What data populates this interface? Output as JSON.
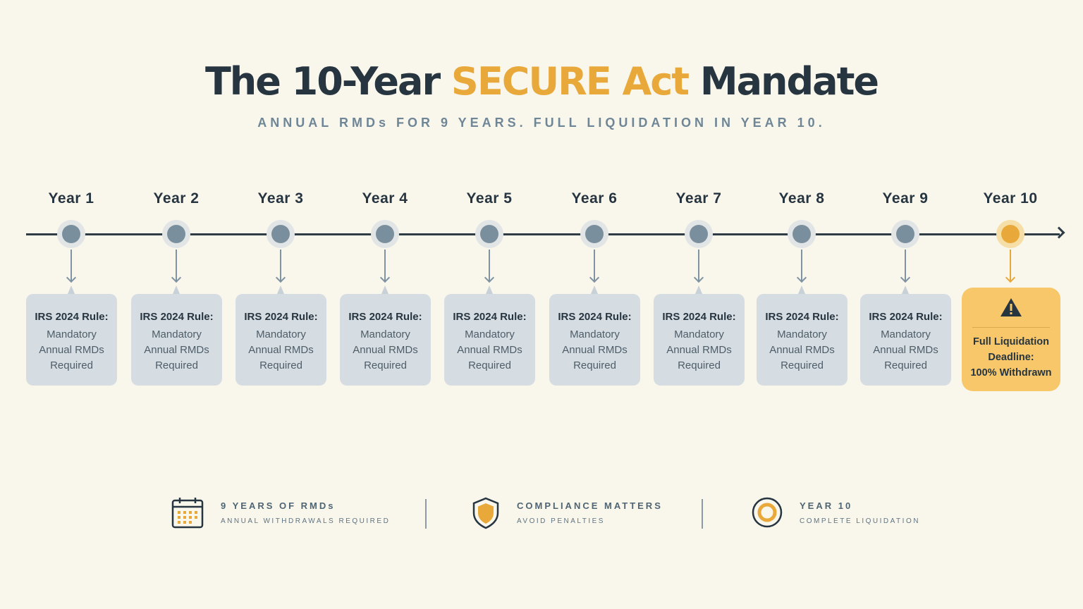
{
  "title": {
    "part1": "The 10-Year ",
    "highlight": "SECURE Act",
    "part2": " Mandate"
  },
  "subtitle": "ANNUAL RMDs FOR 9 YEARS. FULL LIQUIDATION IN YEAR 10.",
  "colors": {
    "accent": "#e9a93a",
    "dark": "#263540",
    "node": "#7a8f9d",
    "card": "#d6dde2",
    "background": "#f9f6ec"
  },
  "years": [
    "Year 1",
    "Year 2",
    "Year 3",
    "Year 4",
    "Year 5",
    "Year 6",
    "Year 7",
    "Year 8",
    "Year 9",
    "Year 10"
  ],
  "cards": [
    {
      "rule": "IRS 2024 Rule:",
      "body": "Mandatory\nAnnual RMDs\nRequired"
    },
    {
      "rule": "IRS 2024 Rule:",
      "body": "Mandatory\nAnnual RMDs\nRequired"
    },
    {
      "rule": "IRS 2024 Rule:",
      "body": "Mandatory\nAnnual RMDs\nRequired"
    },
    {
      "rule": "IRS 2024 Rule:",
      "body": "Mandatory\nAnnual RMDs\nRequired"
    },
    {
      "rule": "IRS 2024 Rule:",
      "body": "Mandatory\nAnnual RMDs\nRequired"
    },
    {
      "rule": "IRS 2024 Rule:",
      "body": "Mandatory\nAnnual RMDs\nRequired"
    },
    {
      "rule": "IRS 2024 Rule:",
      "body": "Mandatory\nAnnual RMDs\nRequired"
    },
    {
      "rule": "IRS 2024 Rule:",
      "body": "Mandatory\nAnnual RMDs\nRequired"
    },
    {
      "rule": "IRS 2024 Rule:",
      "body": "Mandatory\nAnnual RMDs\nRequired"
    }
  ],
  "final_card": {
    "icon": "warning-icon",
    "text": "Full Liquidation\nDeadline:\n100% Withdrawn"
  },
  "legend": [
    {
      "icon": "calendar-icon",
      "title": "9 YEARS OF RMDs",
      "subtitle": "ANNUAL WITHDRAWALS REQUIRED"
    },
    {
      "icon": "shield-icon",
      "title": "COMPLIANCE MATTERS",
      "subtitle": "AVOID PENALTIES"
    },
    {
      "icon": "target-icon",
      "title": "YEAR 10",
      "subtitle": "COMPLETE LIQUIDATION"
    }
  ]
}
